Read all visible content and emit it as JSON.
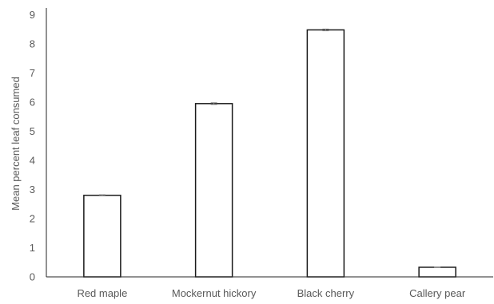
{
  "chart_data": {
    "type": "bar",
    "title": "",
    "xlabel": "",
    "ylabel": "Mean percent leaf consumed",
    "categories": [
      "Red maple",
      "Mockernut hickory",
      "Black cherry",
      "Callery pear"
    ],
    "values": [
      2.8,
      5.95,
      8.48,
      0.33
    ],
    "error": [
      0.02,
      0.03,
      0.03,
      0.01
    ],
    "ylim": [
      0,
      9
    ],
    "yticks": [
      "0",
      "1",
      "2",
      "3",
      "4",
      "5",
      "6",
      "7",
      "8",
      "9"
    ],
    "grid": false,
    "legend": "none",
    "colors": {
      "bar_fill": "#ffffff",
      "bar_stroke": "#1a1a1a",
      "axis": "#262626",
      "error_bar": "#8c8c8c",
      "text": "#595959"
    }
  }
}
